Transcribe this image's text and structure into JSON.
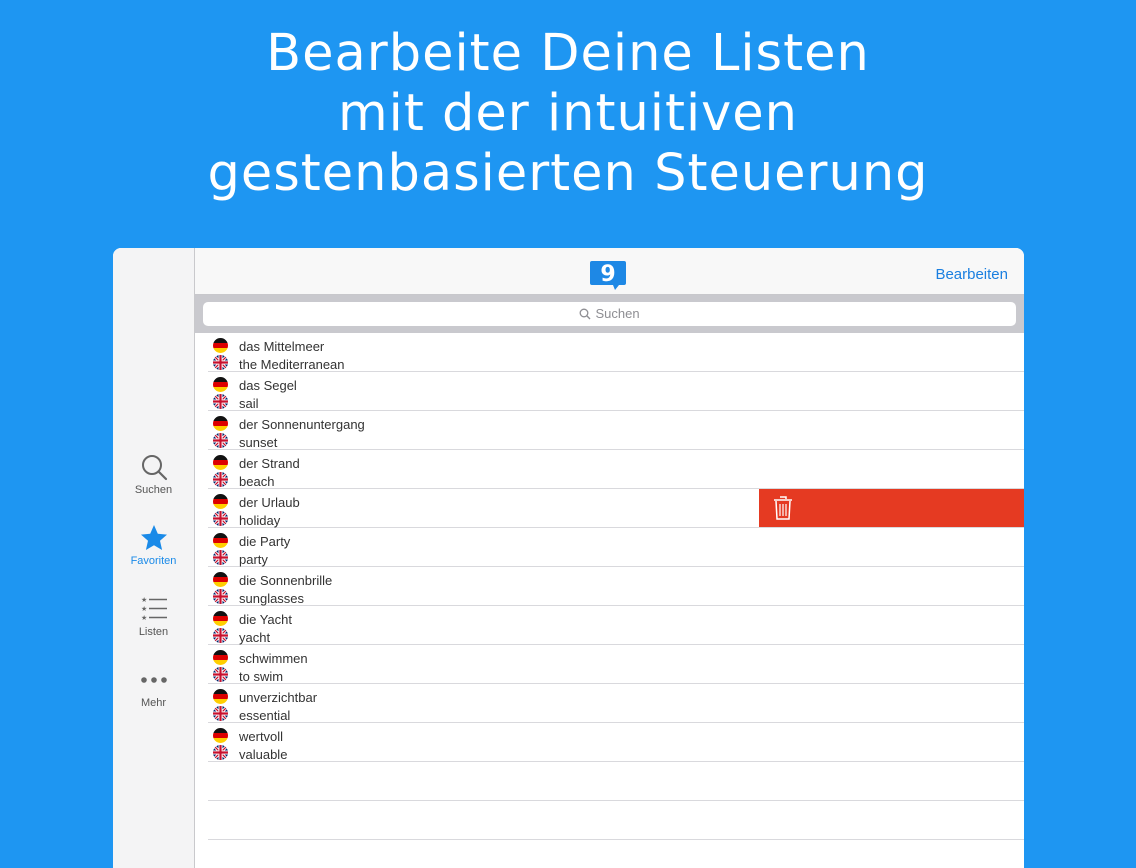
{
  "headline": {
    "line1": "Bearbeite Deine Listen",
    "line2": "mit der intuitiven",
    "line3": "gestenbasierten Steuerung"
  },
  "sidebar": {
    "items": [
      {
        "label": "Suchen",
        "icon": "search-icon"
      },
      {
        "label": "Favoriten",
        "icon": "star-icon"
      },
      {
        "label": "Listen",
        "icon": "list-icon"
      },
      {
        "label": "Mehr",
        "icon": "more-icon"
      }
    ]
  },
  "navbar": {
    "logo_text": "9",
    "edit_label": "Bearbeiten"
  },
  "search": {
    "placeholder": "Suchen"
  },
  "colors": {
    "background": "#1e96f2",
    "accent": "#1a8ae8",
    "delete": "#e53a22"
  },
  "entries": [
    {
      "de": "das Mittelmeer",
      "en": "the Mediterranean"
    },
    {
      "de": "das Segel",
      "en": "sail"
    },
    {
      "de": "der Sonnenuntergang",
      "en": "sunset"
    },
    {
      "de": "der Strand",
      "en": "beach"
    },
    {
      "de": "der Urlaub",
      "en": "holiday"
    },
    {
      "de": "die Party",
      "en": "party"
    },
    {
      "de": "die Sonnenbrille",
      "en": "sunglasses"
    },
    {
      "de": "die Yacht",
      "en": "yacht"
    },
    {
      "de": "schwimmen",
      "en": "to swim"
    },
    {
      "de": "unverzichtbar",
      "en": "essential"
    },
    {
      "de": "wertvoll",
      "en": "valuable"
    }
  ]
}
